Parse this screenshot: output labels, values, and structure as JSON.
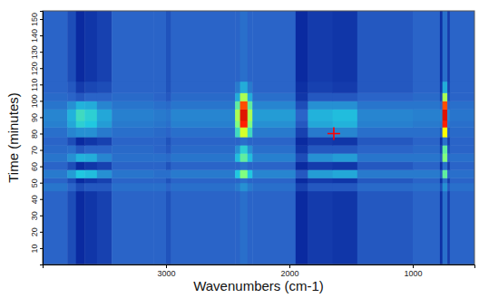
{
  "chart_data": {
    "type": "heatmap",
    "xlabel": "Wavenumbers (cm-1)",
    "ylabel": "Time (minutes)",
    "xlim": [
      4000,
      500
    ],
    "ylim": [
      0,
      155
    ],
    "xticks": [
      3000,
      2000,
      1000
    ],
    "yticks": [
      10,
      20,
      30,
      40,
      50,
      60,
      70,
      80,
      90,
      100,
      110,
      120,
      130,
      140,
      150
    ],
    "x_edges": [
      4000,
      3800,
      3730,
      3660,
      3560,
      3440,
      3100,
      3000,
      2960,
      2440,
      2400,
      2340,
      2300,
      1950,
      1850,
      1650,
      1450,
      1000,
      780,
      760,
      720,
      700,
      500
    ],
    "y_edges": [
      0,
      45,
      50,
      53,
      58,
      63,
      68,
      73,
      78,
      84,
      88,
      95,
      100,
      105,
      112,
      155
    ],
    "z": [
      [
        0.22,
        0.18,
        0.12,
        0.14,
        0.16,
        0.22,
        0.22,
        0.19,
        0.22,
        0.22,
        0.24,
        0.22,
        0.22,
        0.12,
        0.15,
        0.14,
        0.2,
        0.22,
        0.13,
        0.24,
        0.15,
        0.22
      ],
      [
        0.25,
        0.22,
        0.18,
        0.2,
        0.2,
        0.24,
        0.24,
        0.22,
        0.24,
        0.26,
        0.3,
        0.26,
        0.24,
        0.16,
        0.2,
        0.2,
        0.23,
        0.24,
        0.18,
        0.3,
        0.2,
        0.24
      ],
      [
        0.22,
        0.18,
        0.12,
        0.14,
        0.16,
        0.22,
        0.22,
        0.19,
        0.22,
        0.22,
        0.24,
        0.22,
        0.22,
        0.12,
        0.15,
        0.14,
        0.2,
        0.22,
        0.13,
        0.24,
        0.15,
        0.22
      ],
      [
        0.26,
        0.32,
        0.4,
        0.38,
        0.3,
        0.25,
        0.24,
        0.24,
        0.26,
        0.4,
        0.55,
        0.4,
        0.28,
        0.2,
        0.32,
        0.34,
        0.26,
        0.26,
        0.2,
        0.5,
        0.22,
        0.24
      ],
      [
        0.22,
        0.18,
        0.12,
        0.14,
        0.16,
        0.22,
        0.22,
        0.19,
        0.22,
        0.22,
        0.24,
        0.22,
        0.22,
        0.12,
        0.15,
        0.14,
        0.2,
        0.22,
        0.13,
        0.24,
        0.15,
        0.22
      ],
      [
        0.25,
        0.3,
        0.36,
        0.35,
        0.28,
        0.24,
        0.24,
        0.23,
        0.25,
        0.38,
        0.5,
        0.38,
        0.27,
        0.18,
        0.3,
        0.32,
        0.25,
        0.25,
        0.2,
        0.55,
        0.22,
        0.24
      ],
      [
        0.23,
        0.24,
        0.2,
        0.22,
        0.22,
        0.23,
        0.22,
        0.2,
        0.23,
        0.3,
        0.42,
        0.3,
        0.24,
        0.14,
        0.2,
        0.2,
        0.22,
        0.23,
        0.16,
        0.5,
        0.18,
        0.22
      ],
      [
        0.22,
        0.18,
        0.12,
        0.14,
        0.16,
        0.22,
        0.22,
        0.19,
        0.22,
        0.22,
        0.24,
        0.22,
        0.22,
        0.12,
        0.15,
        0.14,
        0.2,
        0.22,
        0.13,
        0.24,
        0.15,
        0.22
      ],
      [
        0.24,
        0.28,
        0.3,
        0.3,
        0.26,
        0.24,
        0.23,
        0.22,
        0.24,
        0.45,
        0.65,
        0.45,
        0.26,
        0.16,
        0.26,
        0.28,
        0.24,
        0.24,
        0.2,
        0.7,
        0.2,
        0.23
      ],
      [
        0.27,
        0.34,
        0.42,
        0.4,
        0.32,
        0.26,
        0.25,
        0.24,
        0.27,
        0.55,
        0.85,
        0.55,
        0.3,
        0.2,
        0.34,
        0.36,
        0.27,
        0.26,
        0.25,
        0.85,
        0.25,
        0.24
      ],
      [
        0.28,
        0.36,
        0.45,
        0.42,
        0.34,
        0.27,
        0.26,
        0.25,
        0.28,
        0.6,
        0.9,
        0.6,
        0.32,
        0.22,
        0.36,
        0.38,
        0.28,
        0.27,
        0.28,
        0.9,
        0.28,
        0.25
      ],
      [
        0.25,
        0.3,
        0.36,
        0.35,
        0.28,
        0.25,
        0.24,
        0.23,
        0.25,
        0.5,
        0.82,
        0.5,
        0.28,
        0.18,
        0.3,
        0.3,
        0.25,
        0.25,
        0.22,
        0.82,
        0.22,
        0.24
      ],
      [
        0.23,
        0.22,
        0.2,
        0.22,
        0.22,
        0.23,
        0.22,
        0.2,
        0.23,
        0.35,
        0.6,
        0.35,
        0.24,
        0.14,
        0.2,
        0.2,
        0.22,
        0.23,
        0.16,
        0.6,
        0.18,
        0.22
      ],
      [
        0.22,
        0.2,
        0.15,
        0.17,
        0.18,
        0.22,
        0.22,
        0.19,
        0.22,
        0.26,
        0.35,
        0.26,
        0.22,
        0.13,
        0.16,
        0.15,
        0.2,
        0.22,
        0.14,
        0.35,
        0.16,
        0.22
      ],
      [
        0.22,
        0.18,
        0.12,
        0.14,
        0.16,
        0.22,
        0.22,
        0.19,
        0.22,
        0.22,
        0.24,
        0.22,
        0.22,
        0.12,
        0.15,
        0.14,
        0.2,
        0.22,
        0.13,
        0.24,
        0.15,
        0.22
      ]
    ],
    "zlim": [
      0,
      1
    ],
    "markers": [
      {
        "x": 1640,
        "y": 80,
        "marker": "plus",
        "color": "#ff0000"
      }
    ]
  }
}
